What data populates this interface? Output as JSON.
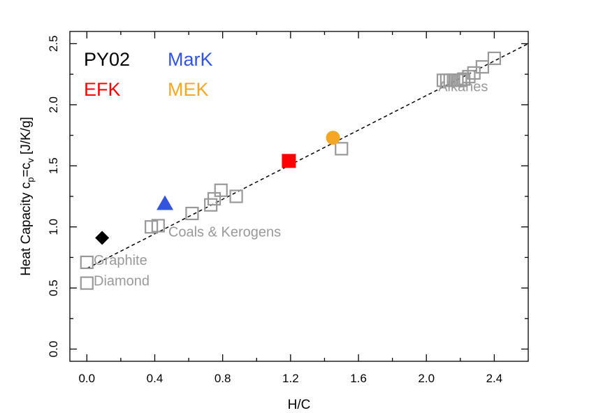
{
  "chart_data": {
    "type": "scatter",
    "xlabel": "H/C",
    "ylabel": {
      "prefix": "Heat Capacity c",
      "sub1": "p",
      "mid": "=c",
      "sub2": "v",
      "suffix": " [J/K/g]"
    },
    "xlim": [
      -0.1,
      2.6
    ],
    "ylim": [
      -0.1,
      2.6
    ],
    "x_ticks": [
      0.0,
      0.4,
      0.8,
      1.2,
      1.6,
      2.0,
      2.4
    ],
    "x_tick_labels": [
      "0.0",
      "0.4",
      "0.8",
      "1.2",
      "1.6",
      "2.0",
      "2.4"
    ],
    "y_ticks": [
      0.0,
      0.5,
      1.0,
      1.5,
      2.0,
      2.5
    ],
    "y_tick_labels": [
      "0.0",
      "0.5",
      "1.0",
      "1.5",
      "2.0",
      "2.5"
    ],
    "grid": false,
    "trend_line": {
      "style": "dashed",
      "x": [
        0.0,
        2.6
      ],
      "y": [
        0.66,
        2.5
      ]
    },
    "reference_points": [
      {
        "x": 0.0,
        "y": 0.71
      },
      {
        "x": 0.0,
        "y": 0.54
      },
      {
        "x": 0.38,
        "y": 1.0
      },
      {
        "x": 0.42,
        "y": 1.01
      },
      {
        "x": 0.62,
        "y": 1.11
      },
      {
        "x": 0.73,
        "y": 1.18
      },
      {
        "x": 0.75,
        "y": 1.23
      },
      {
        "x": 0.79,
        "y": 1.3
      },
      {
        "x": 0.88,
        "y": 1.25
      },
      {
        "x": 1.5,
        "y": 1.64
      },
      {
        "x": 2.1,
        "y": 2.2
      },
      {
        "x": 2.12,
        "y": 2.2
      },
      {
        "x": 2.14,
        "y": 2.2
      },
      {
        "x": 2.16,
        "y": 2.2
      },
      {
        "x": 2.18,
        "y": 2.2
      },
      {
        "x": 2.2,
        "y": 2.2
      },
      {
        "x": 2.22,
        "y": 2.21
      },
      {
        "x": 2.25,
        "y": 2.23
      },
      {
        "x": 2.28,
        "y": 2.26
      },
      {
        "x": 2.33,
        "y": 2.31
      },
      {
        "x": 2.4,
        "y": 2.38
      }
    ],
    "annotations": [
      {
        "text": "Graphite",
        "x": 0.04,
        "y": 0.69
      },
      {
        "text": "Diamond",
        "x": 0.04,
        "y": 0.52
      },
      {
        "text": "Coals & Kerogens",
        "x": 0.48,
        "y": 0.92
      },
      {
        "text": "Alkanes",
        "x": 2.07,
        "y": 2.11
      }
    ],
    "series": [
      {
        "name": "PY02",
        "marker": "diamond",
        "color": "#000000",
        "x": 0.09,
        "y": 0.91
      },
      {
        "name": "MarK",
        "marker": "triangle",
        "color": "#3355dd",
        "x": 0.46,
        "y": 1.19
      },
      {
        "name": "EFK",
        "marker": "square",
        "color": "#ff0000",
        "x": 1.19,
        "y": 1.54
      },
      {
        "name": "MEK",
        "marker": "circle",
        "color": "#f5a623",
        "x": 1.45,
        "y": 1.73
      }
    ],
    "legend_placement": "top-left",
    "colors": {
      "reference": "#999999",
      "annotation": "#999999",
      "axis": "#000000"
    }
  }
}
